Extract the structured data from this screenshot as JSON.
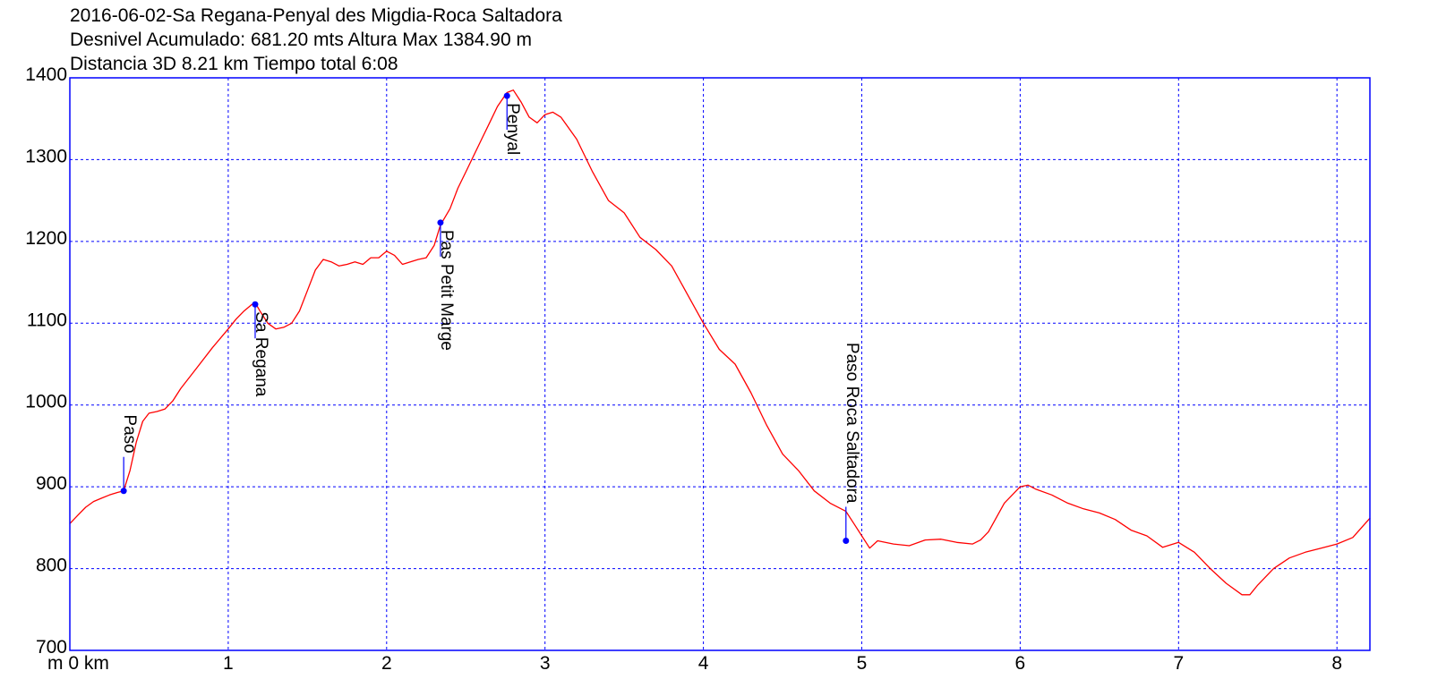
{
  "header": {
    "line1": "2016-06-02-Sa Regana-Penyal des Migdia-Roca Saltadora",
    "line2": "Desnivel Acumulado: 681.20 mts  Altura Max 1384.90 m",
    "line3": "Distancia 3D 8.21 km  Tiempo total 6:08"
  },
  "colors": {
    "frame": "#0000ff",
    "grid": "#0000ff",
    "line": "#ff0000",
    "waypoint": "#0000ff"
  },
  "chart_data": {
    "type": "line",
    "title": "2016-06-02-Sa Regana-Penyal des Migdia-Roca Saltadora",
    "xlabel": "km",
    "ylabel": "m",
    "xlim": [
      0,
      8.21
    ],
    "ylim": [
      700,
      1400
    ],
    "grid": true,
    "x_ticks": [
      0,
      1,
      2,
      3,
      4,
      5,
      6,
      7,
      8
    ],
    "x_tick_labels": [
      "m 0 km",
      "1",
      "2",
      "3",
      "4",
      "5",
      "6",
      "7",
      "8"
    ],
    "y_ticks": [
      700,
      800,
      900,
      1000,
      1100,
      1200,
      1300,
      1400
    ],
    "y_tick_labels": [
      "700",
      "800",
      "900",
      "1000",
      "1100",
      "1200",
      "1300",
      "1400"
    ],
    "series": [
      {
        "x": [
          0,
          0.05,
          0.1,
          0.15,
          0.2,
          0.25,
          0.3,
          0.34,
          0.38,
          0.42,
          0.46,
          0.5,
          0.55,
          0.6,
          0.65,
          0.7,
          0.8,
          0.9,
          1.0,
          1.05,
          1.1,
          1.15,
          1.17,
          1.2,
          1.25,
          1.3,
          1.35,
          1.4,
          1.45,
          1.5,
          1.55,
          1.6,
          1.65,
          1.7,
          1.75,
          1.8,
          1.85,
          1.9,
          1.95,
          2.0,
          2.05,
          2.1,
          2.15,
          2.2,
          2.25,
          2.3,
          2.34,
          2.4,
          2.45,
          2.5,
          2.55,
          2.6,
          2.65,
          2.7,
          2.76,
          2.8,
          2.85,
          2.9,
          2.95,
          3.0,
          3.05,
          3.1,
          3.2,
          3.3,
          3.4,
          3.5,
          3.6,
          3.7,
          3.8,
          3.9,
          4.0,
          4.1,
          4.2,
          4.3,
          4.4,
          4.5,
          4.6,
          4.7,
          4.8,
          4.9,
          4.95,
          5.0,
          5.05,
          5.1,
          5.2,
          5.3,
          5.4,
          5.5,
          5.6,
          5.7,
          5.75,
          5.8,
          5.9,
          6.0,
          6.05,
          6.1,
          6.2,
          6.3,
          6.4,
          6.5,
          6.6,
          6.7,
          6.8,
          6.9,
          7.0,
          7.1,
          7.2,
          7.3,
          7.4,
          7.45,
          7.5,
          7.6,
          7.7,
          7.8,
          7.9,
          8.0,
          8.1,
          8.21
        ],
        "y": [
          855,
          865,
          875,
          882,
          886,
          890,
          893,
          895,
          920,
          955,
          980,
          990,
          992,
          995,
          1005,
          1020,
          1045,
          1070,
          1093,
          1105,
          1115,
          1123,
          1125,
          1115,
          1100,
          1093,
          1095,
          1100,
          1115,
          1140,
          1165,
          1178,
          1175,
          1170,
          1172,
          1175,
          1172,
          1180,
          1180,
          1188,
          1183,
          1172,
          1175,
          1178,
          1180,
          1195,
          1220,
          1240,
          1265,
          1285,
          1305,
          1325,
          1345,
          1365,
          1382,
          1385,
          1370,
          1352,
          1345,
          1355,
          1358,
          1352,
          1325,
          1285,
          1250,
          1235,
          1205,
          1190,
          1170,
          1135,
          1100,
          1068,
          1050,
          1015,
          975,
          940,
          920,
          895,
          880,
          870,
          855,
          840,
          825,
          834,
          830,
          828,
          835,
          836,
          832,
          830,
          835,
          845,
          880,
          900,
          902,
          897,
          890,
          880,
          873,
          868,
          860,
          847,
          840,
          826,
          832,
          820,
          800,
          782,
          768,
          768,
          780,
          800,
          813,
          820,
          825,
          830,
          838,
          862
        ]
      }
    ],
    "waypoints": [
      {
        "name": "Paso",
        "x": 0.34,
        "y": 895
      },
      {
        "name": "Sa Regana",
        "x": 1.17,
        "y": 1123
      },
      {
        "name": "Pas Petit Marge",
        "x": 2.34,
        "y": 1223
      },
      {
        "name": "Penyal",
        "x": 2.76,
        "y": 1378
      },
      {
        "name": "Paso Roca Saltadora",
        "x": 4.9,
        "y": 834
      }
    ]
  }
}
